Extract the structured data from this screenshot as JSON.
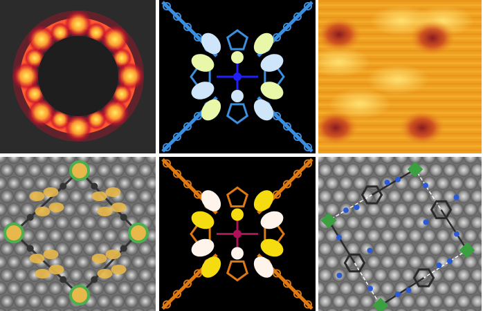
{
  "figure": {
    "panels": [
      {
        "id": "a",
        "kind": "simulated-stm-ring",
        "background": "#2b2b2b",
        "glow": "#ffef60",
        "rim": "#c8102e"
      },
      {
        "id": "b",
        "kind": "molecular-orbital-blue",
        "background": "#000000",
        "bond": "#3a8fe0",
        "lobe_pos": "#cfe6fa",
        "lobe_neg": "#e8f7a8",
        "center": "#2020ff"
      },
      {
        "id": "c",
        "kind": "experimental-stm",
        "base": "#f0a020",
        "bright": "#ffe070",
        "dark": "#8a1a20"
      },
      {
        "id": "d",
        "kind": "surface-orbital-gold",
        "substrate": "#8a8a8a",
        "lobe": "#e8b84a",
        "metal": "#4caf50"
      },
      {
        "id": "e",
        "kind": "molecular-orbital-orange",
        "background": "#000000",
        "bond": "#e07a10",
        "lobe_pos": "#fff4ec",
        "lobe_neg": "#f5dc10",
        "center": "#b0105a"
      },
      {
        "id": "f",
        "kind": "surface-structure",
        "substrate": "#9a9a9a",
        "carbon": "#2a2a2a",
        "nitrogen": "#2a5ad8",
        "metal": "#3aa040",
        "line": "#ffffff"
      }
    ]
  }
}
